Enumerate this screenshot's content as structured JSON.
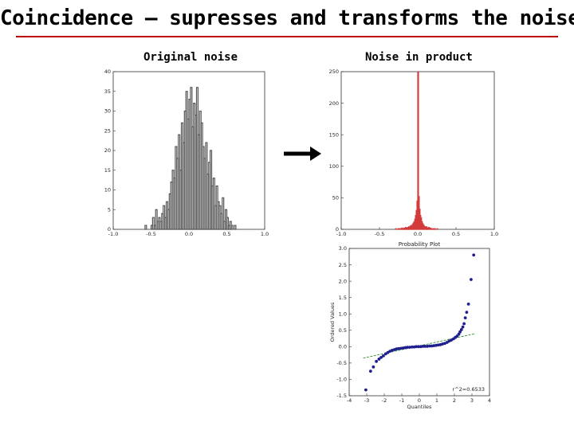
{
  "slide": {
    "title": "Coincidence – supresses and transforms the noise",
    "left_caption": "Original noise",
    "right_caption": "Noise in product",
    "arrow_icon": "right-arrow-icon",
    "accent_color": "#c00000"
  },
  "chart_data": [
    {
      "type": "bar",
      "style": "histogram-step",
      "color": "#555555",
      "title": "",
      "xlabel": "",
      "ylabel": "",
      "xlim": [
        -1.0,
        1.0
      ],
      "ylim": [
        0,
        40
      ],
      "xticks": [
        "-1.0",
        "-0.5",
        "0.0",
        "0.5",
        "1.0"
      ],
      "yticks": [
        "0",
        "5",
        "10",
        "15",
        "20",
        "25",
        "30",
        "35",
        "40"
      ],
      "bin_width": 0.02,
      "bins_start": -0.58,
      "values": [
        1,
        0,
        0,
        0,
        1,
        3,
        1,
        5,
        2,
        3,
        2,
        4,
        6,
        3,
        7,
        5,
        9,
        12,
        15,
        13,
        21,
        18,
        24,
        15,
        27,
        22,
        30,
        35,
        28,
        33,
        36,
        26,
        32,
        29,
        36,
        24,
        30,
        27,
        21,
        18,
        22,
        14,
        17,
        20,
        11,
        13,
        6,
        11,
        7,
        6,
        4,
        8,
        2,
        5,
        3,
        1,
        2,
        1,
        0,
        1
      ]
    },
    {
      "type": "bar",
      "style": "histogram-step",
      "color": "#d33b3b",
      "title": "",
      "xlabel": "",
      "ylabel": "",
      "xlim": [
        -1.0,
        1.0
      ],
      "ylim": [
        0,
        250
      ],
      "xticks": [
        "-1.0",
        "-0.5",
        "0.0",
        "0.5",
        "1.0"
      ],
      "yticks": [
        "0",
        "50",
        "100",
        "150",
        "200",
        "250"
      ],
      "bin_width": 0.01,
      "bins_start": -0.3,
      "values": [
        0,
        1,
        0,
        0,
        1,
        0,
        1,
        1,
        0,
        2,
        1,
        1,
        2,
        1,
        3,
        2,
        2,
        3,
        4,
        3,
        5,
        6,
        5,
        8,
        10,
        12,
        16,
        22,
        30,
        45,
        250,
        52,
        32,
        22,
        18,
        12,
        9,
        7,
        5,
        4,
        3,
        4,
        2,
        2,
        3,
        1,
        2,
        1,
        1,
        1,
        0,
        1,
        1,
        0,
        0,
        1,
        0,
        0,
        0,
        0
      ]
    },
    {
      "type": "scatter",
      "title": "Probability Plot",
      "xlabel": "Quantiles",
      "ylabel": "Ordered Values",
      "xlim": [
        -4,
        4
      ],
      "ylim": [
        -1.5,
        3.0
      ],
      "xticks": [
        "-4",
        "-3",
        "-2",
        "-1",
        "0",
        "1",
        "2",
        "3",
        "4"
      ],
      "yticks": [
        "-1.5",
        "-1.0",
        "-0.5",
        "0.0",
        "0.5",
        "1.0",
        "1.5",
        "2.0",
        "2.5",
        "3.0"
      ],
      "annotation": "r^2=0.6533",
      "point_color": "#1f1f8f",
      "fit_line": {
        "color": "#2e8b2e",
        "x": [
          -3.2,
          3.2
        ],
        "y": [
          -0.35,
          0.4
        ]
      },
      "series": [
        {
          "x": [
            -3.05,
            -2.78,
            -2.62,
            -2.45,
            -2.3,
            -2.18,
            -2.05,
            -1.92,
            -1.8,
            -1.68,
            -1.55,
            -1.42,
            -1.3,
            -1.18,
            -1.05,
            -0.92,
            -0.8,
            -0.68,
            -0.55,
            -0.42,
            -0.3,
            -0.18,
            -0.05,
            0.08,
            0.2,
            0.32,
            0.45,
            0.58,
            0.7,
            0.82,
            0.95,
            1.08,
            1.2,
            1.32,
            1.45,
            1.58,
            1.7,
            1.82,
            1.95,
            2.05,
            2.15,
            2.25,
            2.32,
            2.4,
            2.48,
            2.55,
            2.62,
            2.7,
            2.8,
            2.95,
            3.1
          ],
          "y": [
            -1.32,
            -0.75,
            -0.62,
            -0.45,
            -0.38,
            -0.33,
            -0.28,
            -0.22,
            -0.18,
            -0.14,
            -0.11,
            -0.09,
            -0.07,
            -0.06,
            -0.05,
            -0.04,
            -0.03,
            -0.02,
            -0.02,
            -0.01,
            -0.01,
            0.0,
            0.0,
            0.0,
            0.01,
            0.01,
            0.01,
            0.02,
            0.02,
            0.03,
            0.04,
            0.05,
            0.06,
            0.08,
            0.1,
            0.13,
            0.17,
            0.2,
            0.24,
            0.28,
            0.32,
            0.38,
            0.45,
            0.52,
            0.6,
            0.7,
            0.88,
            1.05,
            1.3,
            2.05,
            2.8
          ]
        }
      ]
    }
  ]
}
